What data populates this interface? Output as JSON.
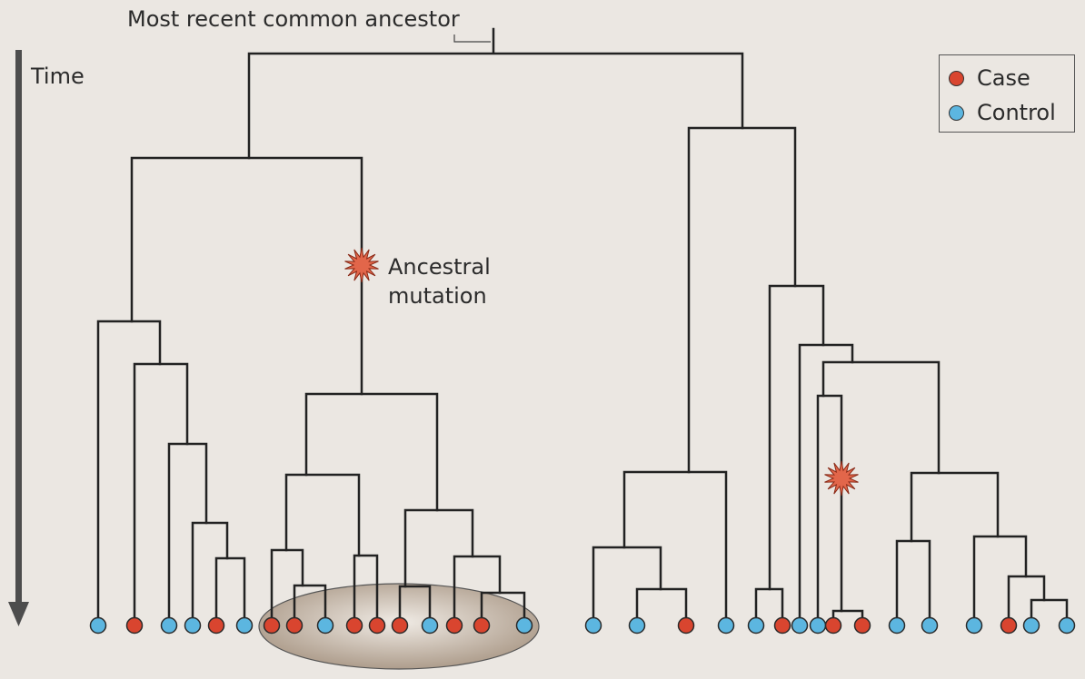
{
  "title": "Most recent common ancestor",
  "axis_label": "Time",
  "annotation": {
    "line1": "Ancestral",
    "line2": "mutation"
  },
  "legend": [
    {
      "label": "Case",
      "color": "#d9452f"
    },
    {
      "label": "Control",
      "color": "#5cb6e0"
    }
  ],
  "colors": {
    "case": "#d9452f",
    "control": "#5cb6e0",
    "line": "#222222",
    "cluster": "#b8a89a",
    "mutation": "#e2664a"
  },
  "leaves": [
    "control",
    "case",
    "control",
    "control",
    "case",
    "control",
    "case",
    "case",
    "control",
    "case",
    "case",
    "case",
    "control",
    "case",
    "case",
    "control",
    "control",
    "control",
    "case",
    "control",
    "control",
    "case",
    "control",
    "control",
    "case",
    "case",
    "control",
    "control",
    "control",
    "case",
    "control",
    "control"
  ],
  "highlighted_cluster": "leaves 7-16 (carriers of ancestral mutation)"
}
